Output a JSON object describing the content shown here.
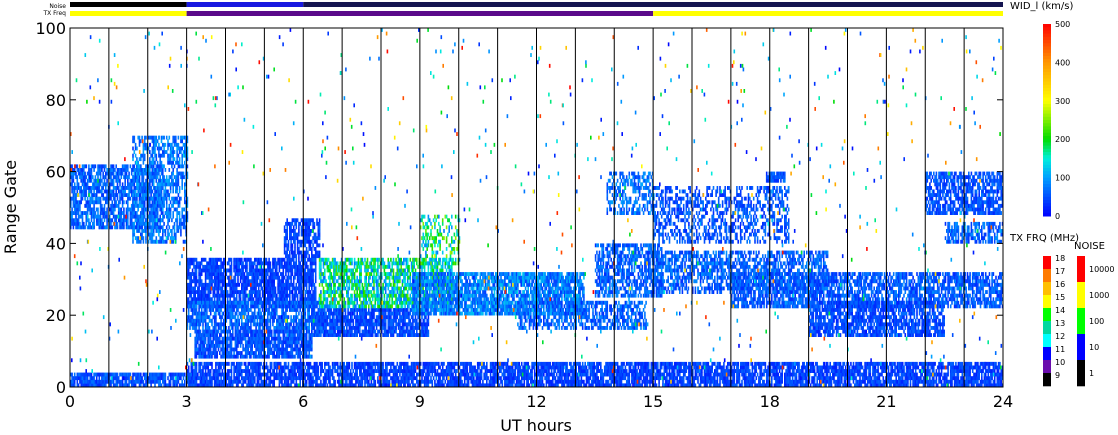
{
  "chart_data": {
    "type": "heatmap",
    "title": "",
    "xlabel": "UT hours",
    "ylabel": "Range Gate",
    "xlim": [
      0,
      24
    ],
    "ylim": [
      0,
      100
    ],
    "x_ticks": [
      "0",
      "3",
      "6",
      "9",
      "12",
      "15",
      "18",
      "21",
      "24"
    ],
    "y_ticks": [
      "0",
      "20",
      "40",
      "60",
      "80",
      "100"
    ],
    "status_bars": {
      "noise_label": "Noise",
      "txfreq_label": "TX Freq",
      "txfreq_segments": [
        {
          "start": 0,
          "end": 3,
          "color": "#ffff00"
        },
        {
          "start": 3,
          "end": 15,
          "color": "#5a0a8a"
        },
        {
          "start": 15,
          "end": 24,
          "color": "#ffff00"
        }
      ],
      "noise_segments": [
        {
          "start": 0,
          "end": 3,
          "color": "#000000"
        },
        {
          "start": 3,
          "end": 6,
          "color": "#1818e0"
        },
        {
          "start": 6,
          "end": 24,
          "color": "#141450"
        }
      ]
    },
    "hour_lines": [
      1,
      2,
      3,
      4,
      5,
      6,
      7,
      8,
      9,
      10,
      11,
      12,
      13,
      14,
      15,
      16,
      17,
      18,
      19,
      20,
      21,
      22,
      23
    ],
    "echo_bands": [
      {
        "t0": 0.0,
        "t1": 2.4,
        "g0": 44,
        "g1": 62,
        "v": 60,
        "fill": 0.72
      },
      {
        "t0": 1.6,
        "t1": 3.0,
        "g0": 40,
        "g1": 70,
        "v": 70,
        "fill": 0.55
      },
      {
        "t0": 0.0,
        "t1": 3.2,
        "g0": 0,
        "g1": 4,
        "v": 50,
        "fill": 0.85
      },
      {
        "t0": 3.0,
        "t1": 6.3,
        "g0": 22,
        "g1": 36,
        "v": 40,
        "fill": 0.8
      },
      {
        "t0": 3.0,
        "t1": 6.5,
        "g0": 16,
        "g1": 24,
        "v": 60,
        "fill": 0.75
      },
      {
        "t0": 3.2,
        "t1": 6.2,
        "g0": 8,
        "g1": 16,
        "v": 50,
        "fill": 0.85
      },
      {
        "t0": 5.5,
        "t1": 6.4,
        "g0": 36,
        "g1": 47,
        "v": 40,
        "fill": 0.7
      },
      {
        "t0": 6.2,
        "t1": 9.2,
        "g0": 14,
        "g1": 22,
        "v": 45,
        "fill": 0.85
      },
      {
        "t0": 6.4,
        "t1": 9.8,
        "g0": 22,
        "g1": 36,
        "v": 150,
        "fill": 0.7
      },
      {
        "t0": 8.8,
        "t1": 13.2,
        "g0": 20,
        "g1": 32,
        "v": 80,
        "fill": 0.8
      },
      {
        "t0": 9.0,
        "t1": 10.0,
        "g0": 34,
        "g1": 48,
        "v": 170,
        "fill": 0.4
      },
      {
        "t0": 11.5,
        "t1": 14.8,
        "g0": 16,
        "g1": 24,
        "v": 60,
        "fill": 0.6
      },
      {
        "t0": 13.5,
        "t1": 15.2,
        "g0": 25,
        "g1": 40,
        "v": 60,
        "fill": 0.65
      },
      {
        "t0": 13.8,
        "t1": 15.0,
        "g0": 48,
        "g1": 60,
        "v": 70,
        "fill": 0.5
      },
      {
        "t0": 15.0,
        "t1": 18.5,
        "g0": 40,
        "g1": 56,
        "v": 50,
        "fill": 0.45
      },
      {
        "t0": 15.0,
        "t1": 19.5,
        "g0": 26,
        "g1": 38,
        "v": 60,
        "fill": 0.6
      },
      {
        "t0": 17.0,
        "t1": 24.0,
        "g0": 22,
        "g1": 32,
        "v": 55,
        "fill": 0.7
      },
      {
        "t0": 19.0,
        "t1": 22.5,
        "g0": 14,
        "g1": 24,
        "v": 45,
        "fill": 0.75
      },
      {
        "t0": 22.0,
        "t1": 24.0,
        "g0": 48,
        "g1": 60,
        "v": 50,
        "fill": 0.7
      },
      {
        "t0": 22.5,
        "t1": 24.0,
        "g0": 40,
        "g1": 46,
        "v": 60,
        "fill": 0.6
      },
      {
        "t0": 3.0,
        "t1": 24.0,
        "g0": 0,
        "g1": 7,
        "v": 40,
        "fill": 0.8
      },
      {
        "t0": 17.9,
        "t1": 18.4,
        "g0": 57,
        "g1": 60,
        "v": 50,
        "fill": 0.9
      }
    ],
    "velocity_scale": {
      "title": "WID_l (km/s)",
      "min": 0,
      "max": 500,
      "ticks": [
        "500",
        "400",
        "300",
        "200",
        "100",
        "0"
      ]
    },
    "freq_scale": {
      "title": "TX FRQ (MHz)",
      "ticks": [
        "18",
        "17",
        "16",
        "15",
        "14",
        "13",
        "12",
        "11",
        "10",
        "9"
      ],
      "colors": [
        "#ff0000",
        "#ff7a00",
        "#ffbf00",
        "#ffff00",
        "#00ff00",
        "#00d8a0",
        "#00ffff",
        "#0000ff",
        "#6a0dad",
        "#000000"
      ]
    },
    "noise_scale": {
      "title": "NOISE",
      "ticks": [
        "10000",
        "1000",
        "100",
        "10",
        "1"
      ],
      "colors": [
        "#ff0000",
        "#ffff00",
        "#00ff00",
        "#0000ff",
        "#000000"
      ]
    }
  }
}
